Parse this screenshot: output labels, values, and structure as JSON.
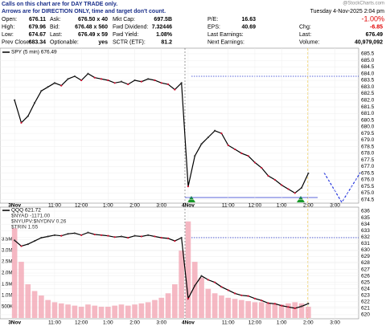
{
  "header": {
    "note": [
      "Calls on this chart are for DAY TRADE only.",
      "Arrows are for DIRECTION ONLY, time and target don't count."
    ],
    "watermark": "@StockCharts.com",
    "date": "Tuesday 4-Nov-2025 2:04 pm",
    "change_pct": "-1.00%",
    "columns": [
      [
        [
          "Open:",
          "676.11"
        ],
        [
          "High:",
          "679.96"
        ],
        [
          "Low:",
          "674.67"
        ],
        [
          "Prev Close:",
          "683.34"
        ]
      ],
      [
        [
          "Ask:",
          "676.50 x 40"
        ],
        [
          "Bid:",
          "676.48 x 560"
        ],
        [
          "Last:",
          "676.49 x 59"
        ],
        [
          "Optionable:",
          "yes"
        ]
      ],
      [
        [
          "Mkt Cap:",
          "697.5B"
        ],
        [
          "Fwd Dividend:",
          "7.32446"
        ],
        [
          "Fwd Yield:",
          "1.08%"
        ],
        [
          "SCTR (ETF):",
          "81.2"
        ]
      ],
      [
        [
          "P/E:",
          "16.63"
        ],
        [
          "EPS:",
          "40.69"
        ],
        [
          "Last Earnings:"
        ],
        [
          "Next Earnings:"
        ]
      ],
      [
        [
          "Chg:",
          "-6.85"
        ],
        [
          "Last:",
          "676.49"
        ],
        [
          "Volume:",
          "40,979,092"
        ]
      ]
    ]
  },
  "chart_data": [
    {
      "type": "line",
      "categories": [
        "3Nov",
        null,
        null,
        null,
        null,
        null,
        "11:00",
        null,
        null,
        null,
        "12:00",
        null,
        null,
        null,
        "1:00",
        null,
        null,
        null,
        "2:00",
        null,
        null,
        null,
        "3:00",
        null,
        null,
        null,
        "4Nov",
        null,
        null,
        null,
        null,
        null,
        "11:00",
        null,
        null,
        null,
        "12:00",
        null,
        null,
        null,
        "1:00",
        null,
        null,
        null,
        "2:00",
        null,
        null,
        null,
        "3:00",
        null,
        null,
        null
      ],
      "series": [
        {
          "name": "SPY (5 min) 676.49",
          "color": "#000000",
          "values": [
            682.0,
            680.3,
            680.8,
            681.8,
            682.7,
            683.0,
            683.3,
            683.1,
            683.6,
            683.8,
            683.5,
            684.0,
            683.7,
            683.6,
            683.5,
            683.3,
            683.4,
            683.2,
            683.5,
            683.4,
            683.6,
            683.5,
            683.3,
            683.2,
            682.8,
            683.3,
            675.5,
            677.8,
            678.7,
            679.2,
            679.7,
            679.5,
            678.6,
            678.3,
            678.0,
            677.8,
            677.3,
            676.9,
            676.3,
            676.0,
            675.6,
            675.3,
            675.0,
            675.4,
            676.49,
            null,
            null,
            null,
            null,
            null,
            null,
            null
          ]
        }
      ],
      "ylim": [
        674.3,
        685.8
      ],
      "yticks": [
        674.5,
        {
          "value": 675,
          "label": "675.0"
        },
        675.5,
        {
          "value": 676,
          "label": "676.0"
        },
        676.5,
        {
          "value": 677,
          "label": "677.0"
        },
        677.5,
        {
          "value": 678,
          "label": "678.0"
        },
        678.5,
        {
          "value": 679,
          "label": "679.0"
        },
        679.5,
        {
          "value": 680,
          "label": "680.0"
        },
        680.5,
        {
          "value": 681,
          "label": "681.0"
        },
        681.5,
        {
          "value": 682,
          "label": "682.0"
        },
        682.5,
        {
          "value": 683,
          "label": "683.0"
        },
        683.5,
        {
          "value": 684,
          "label": "684.0"
        },
        684.5,
        {
          "value": 685,
          "label": "685.0"
        },
        685.5
      ],
      "grid": true
    },
    {
      "type": "line",
      "categories": [
        "3Nov",
        null,
        null,
        null,
        null,
        null,
        "11:00",
        null,
        null,
        null,
        "12:00",
        null,
        null,
        null,
        "1:00",
        null,
        null,
        null,
        "2:00",
        null,
        null,
        null,
        "3:00",
        null,
        null,
        null,
        "4Nov",
        null,
        null,
        null,
        null,
        null,
        "11:00",
        null,
        null,
        null,
        "12:00",
        null,
        null,
        null,
        "1:00",
        null,
        null,
        null,
        "2:00",
        null,
        null,
        null,
        "3:00",
        null,
        null,
        null
      ],
      "series": [
        {
          "name": "QQQ 621.72",
          "color": "#000000",
          "axis": "y2",
          "values": [
            631.5,
            630.6,
            630.9,
            631.4,
            631.9,
            632.1,
            632.3,
            632.2,
            632.5,
            632.6,
            632.3,
            632.7,
            632.4,
            632.3,
            632.2,
            632.0,
            632.1,
            631.9,
            632.2,
            632.1,
            632.3,
            632.1,
            631.9,
            631.8,
            631.4,
            631.9,
            622.5,
            624.5,
            626.0,
            625.4,
            625.0,
            624.3,
            623.8,
            623.3,
            623.0,
            622.9,
            622.5,
            622.2,
            621.8,
            621.7,
            621.4,
            621.2,
            621.0,
            621.3,
            621.72,
            null,
            null,
            null,
            null,
            null,
            null,
            null
          ]
        },
        {
          "type": "bar",
          "color": "#f2a6b4",
          "values": [
            4000000,
            2500000,
            1500000,
            1200000,
            1000000,
            800000,
            700000,
            650000,
            600000,
            550000,
            500000,
            600000,
            550000,
            500000,
            500000,
            550000,
            600000,
            550000,
            600000,
            650000,
            700000,
            800000,
            900000,
            1100000,
            1500000,
            3000000,
            4300000,
            2500000,
            1800000,
            1300000,
            1100000,
            1000000,
            900000,
            850000,
            800000,
            750000,
            700000,
            700000,
            650000,
            650000,
            600000,
            650000,
            700000,
            650000,
            500000,
            null,
            null,
            null,
            null,
            null,
            null,
            null
          ]
        }
      ],
      "indicators": [
        "$NYAD -1171.00",
        "$NYUPV:$NYDNV 0.26",
        "$TRIN 1.55"
      ],
      "ylim": [
        0,
        4900000
      ],
      "yticks": [
        {
          "value": 500000,
          "label": "500K"
        },
        {
          "value": 1000000,
          "label": "1.0M"
        },
        {
          "value": 1500000,
          "label": "1.5M"
        },
        {
          "value": 2000000,
          "label": "2.0M"
        },
        {
          "value": 2500000,
          "label": "2.5M"
        },
        {
          "value": 3000000,
          "label": "3.0M"
        },
        {
          "value": 3500000,
          "label": "3.5M"
        }
      ],
      "y2lim": [
        619.5,
        636.5
      ],
      "y2ticks": [
        620,
        621,
        622,
        623,
        624,
        625,
        626,
        627,
        628,
        629,
        630,
        631,
        632,
        633,
        634,
        635,
        636
      ],
      "grid": true
    }
  ]
}
